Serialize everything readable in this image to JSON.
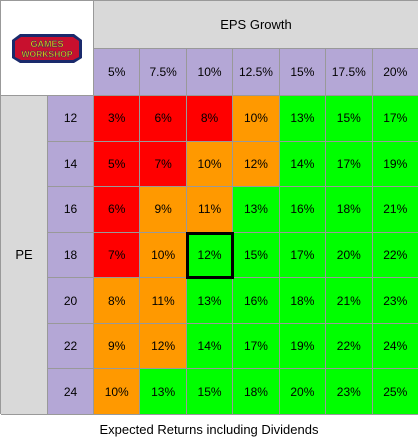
{
  "logo": {
    "text": "GAMES WORKSHOP"
  },
  "chart_data": {
    "type": "table",
    "column_header": "EPS Growth",
    "row_header": "PE",
    "columns": [
      "5%",
      "7.5%",
      "10%",
      "12.5%",
      "15%",
      "17.5%",
      "20%"
    ],
    "rows": [
      "12",
      "14",
      "16",
      "18",
      "20",
      "22",
      "24"
    ],
    "values": [
      [
        "3%",
        "6%",
        "8%",
        "10%",
        "13%",
        "15%",
        "17%"
      ],
      [
        "5%",
        "7%",
        "10%",
        "12%",
        "14%",
        "17%",
        "19%"
      ],
      [
        "6%",
        "9%",
        "11%",
        "13%",
        "16%",
        "18%",
        "21%"
      ],
      [
        "7%",
        "10%",
        "12%",
        "15%",
        "17%",
        "20%",
        "22%"
      ],
      [
        "8%",
        "11%",
        "13%",
        "16%",
        "18%",
        "21%",
        "23%"
      ],
      [
        "9%",
        "12%",
        "14%",
        "17%",
        "19%",
        "22%",
        "24%"
      ],
      [
        "10%",
        "13%",
        "15%",
        "18%",
        "20%",
        "23%",
        "25%"
      ]
    ],
    "cell_colors": [
      [
        "red",
        "red",
        "red",
        "orange",
        "green",
        "green",
        "green"
      ],
      [
        "red",
        "red",
        "orange",
        "orange",
        "green",
        "green",
        "green"
      ],
      [
        "red",
        "orange",
        "orange",
        "green",
        "green",
        "green",
        "green"
      ],
      [
        "red",
        "orange",
        "green",
        "green",
        "green",
        "green",
        "green"
      ],
      [
        "orange",
        "orange",
        "green",
        "green",
        "green",
        "green",
        "green"
      ],
      [
        "orange",
        "orange",
        "green",
        "green",
        "green",
        "green",
        "green"
      ],
      [
        "orange",
        "green",
        "green",
        "green",
        "green",
        "green",
        "green"
      ]
    ],
    "palette": {
      "red": "#ff0000",
      "orange": "#ff9900",
      "green": "#00ff00"
    },
    "selected_cell": {
      "row": "18",
      "column": "10%"
    },
    "caption": "Expected Returns including Dividends"
  }
}
